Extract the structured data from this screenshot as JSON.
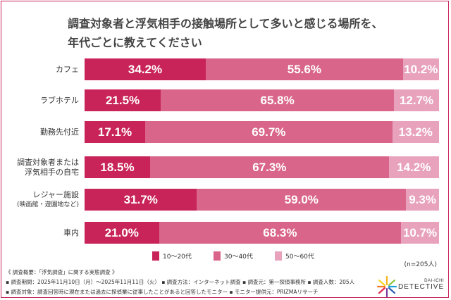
{
  "chart_data": {
    "type": "bar",
    "orientation": "horizontal-stacked-100",
    "title": "調査対象者と浮気相手の接触場所として多いと感じる場所を、年代ごとに教えてください",
    "title_lines": [
      "調査対象者と浮気相手の接触場所として多いと感じる場所を、",
      "年代ごとに教えてください"
    ],
    "categories": [
      {
        "lines": [
          "カフェ"
        ]
      },
      {
        "lines": [
          "ラブホテル"
        ]
      },
      {
        "lines": [
          "勤務先付近"
        ]
      },
      {
        "lines": [
          "調査対象者または",
          "浮気相手の自宅"
        ]
      },
      {
        "lines": [
          "レジャー施設",
          "(映画館・遊園地など)"
        ]
      },
      {
        "lines": [
          "車内"
        ]
      }
    ],
    "series": [
      {
        "name": "10〜20代",
        "color": "#c8245a",
        "values": [
          34.2,
          21.5,
          17.1,
          18.5,
          31.7,
          21.0
        ]
      },
      {
        "name": "30〜40代",
        "color": "#d9658a",
        "values": [
          55.6,
          65.8,
          69.7,
          67.3,
          59.0,
          68.3
        ]
      },
      {
        "name": "50〜60代",
        "color": "#e8a2bb",
        "values": [
          10.2,
          12.7,
          13.2,
          14.2,
          9.3,
          10.7
        ]
      }
    ],
    "value_format": "%",
    "xlim": [
      0,
      100
    ],
    "legend": "bottom",
    "grid": false,
    "note": "(n=205人)"
  },
  "footer": {
    "line1": "《 調査概要：「浮気調査」に関する実態調査 》",
    "line2": "▪ 調査期間：2025年11月10日（月）〜2025年11月11日（火） ▪ 調査方法：インターネット調査 ▪ 調査元：第一探偵事務所 ▪ 調査人数：205人",
    "line3": "▪ 調査対象：調査回答時に現在または過去に探偵業に従事したことがあると回答したモニター ▪ モニター提供元：PRIZMAリサーチ"
  },
  "logo": {
    "top": "DAI-ICHI",
    "bottom": "DETECTIVE"
  }
}
